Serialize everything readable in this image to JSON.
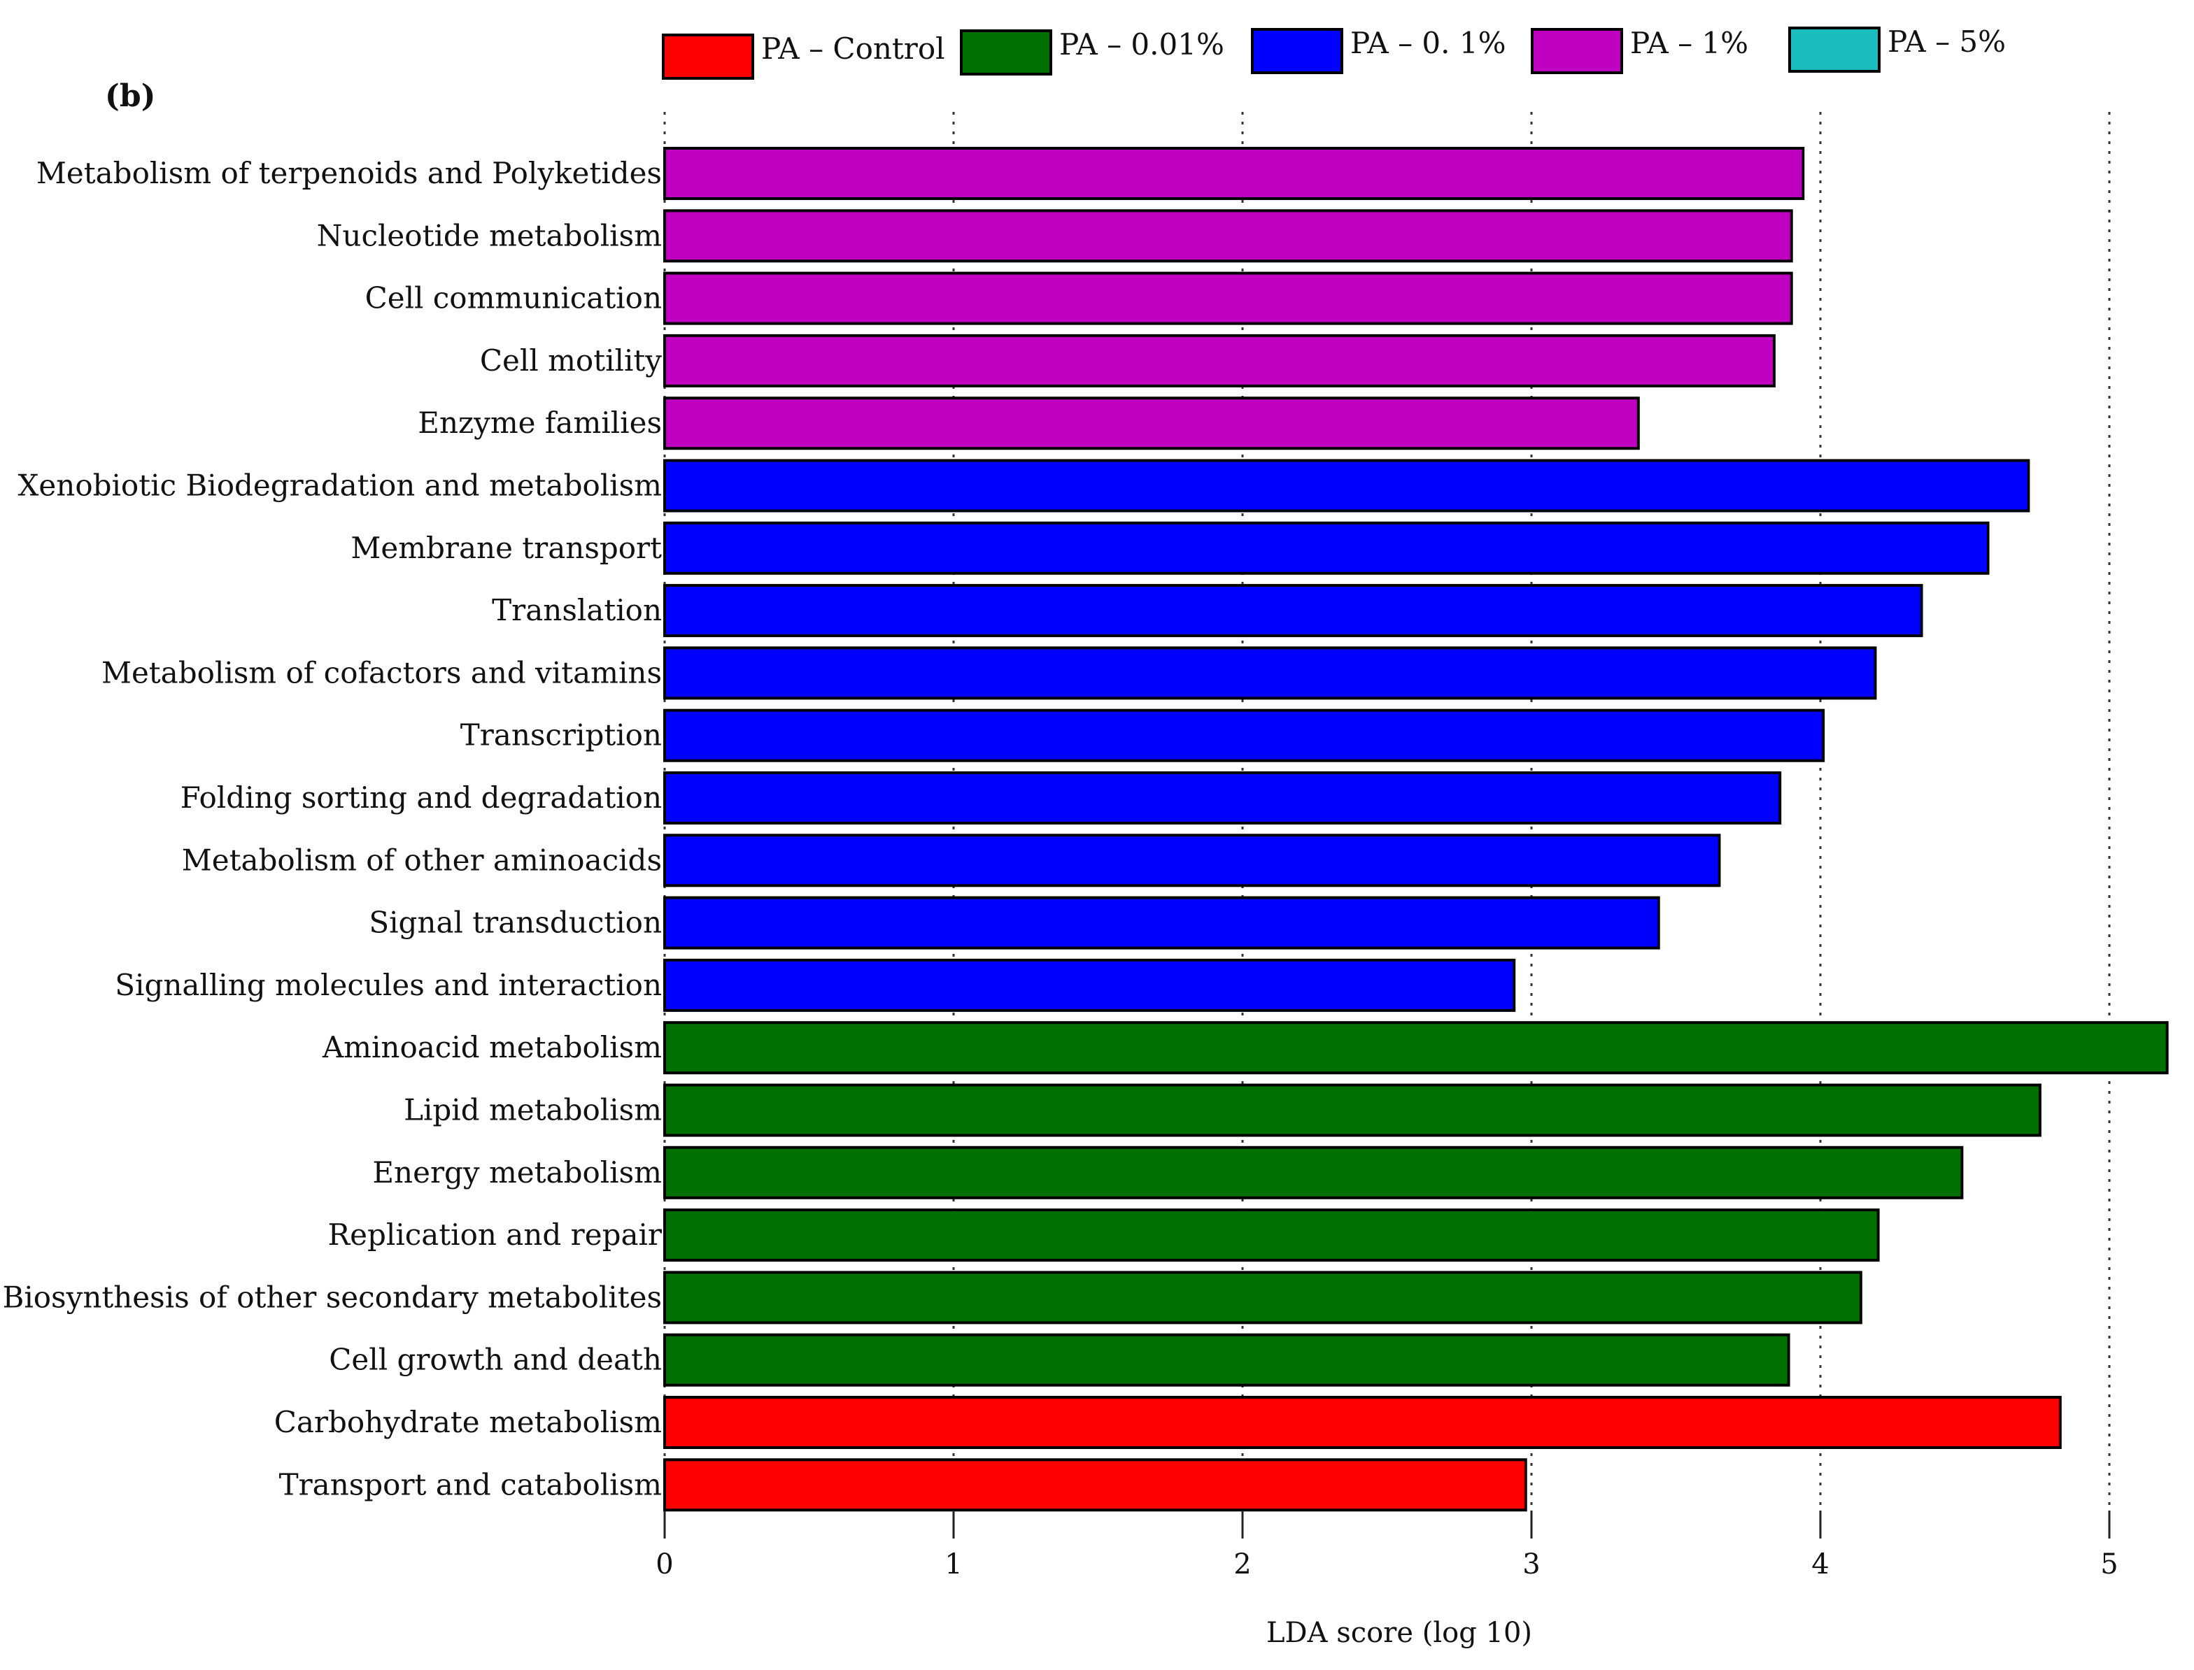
{
  "chart_data": {
    "type": "bar",
    "orientation": "horizontal",
    "panel_label": "(b)",
    "xlabel": "LDA score (log 10)",
    "xlim": [
      0,
      5.2
    ],
    "xticks": [
      0,
      1,
      2,
      3,
      4,
      5
    ],
    "grid": "vertical dotted",
    "legend_position": "top",
    "legend": [
      {
        "name": "PA – Control",
        "color": "#ff0000"
      },
      {
        "name": "PA – 0.01%",
        "color": "#007000"
      },
      {
        "name": "PA – 0. 1%",
        "color": "#0000ff"
      },
      {
        "name": "PA – 1%",
        "color": "#c000c0"
      },
      {
        "name": "PA – 5%",
        "color": "#1abcbc"
      }
    ],
    "bars": [
      {
        "label": "Metabolism of terpenoids and Polyketides",
        "value": 3.94,
        "group": 3
      },
      {
        "label": "Nucleotide metabolism",
        "value": 3.9,
        "group": 3
      },
      {
        "label": "Cell communication",
        "value": 3.9,
        "group": 3
      },
      {
        "label": "Cell motility",
        "value": 3.84,
        "group": 3
      },
      {
        "label": "Enzyme families",
        "value": 3.37,
        "group": 3
      },
      {
        "label": "Xenobiotic Biodegradation and metabolism",
        "value": 4.72,
        "group": 2
      },
      {
        "label": "Membrane transport",
        "value": 4.58,
        "group": 2
      },
      {
        "label": "Translation",
        "value": 4.35,
        "group": 2
      },
      {
        "label": "Metabolism of cofactors and vitamins",
        "value": 4.19,
        "group": 2
      },
      {
        "label": "Transcription",
        "value": 4.01,
        "group": 2
      },
      {
        "label": "Folding sorting and degradation",
        "value": 3.86,
        "group": 2
      },
      {
        "label": "Metabolism of other aminoacids",
        "value": 3.65,
        "group": 2
      },
      {
        "label": "Signal transduction",
        "value": 3.44,
        "group": 2
      },
      {
        "label": "Signalling molecules and interaction",
        "value": 2.94,
        "group": 2
      },
      {
        "label": "Aminoacid metabolism",
        "value": 5.2,
        "group": 1
      },
      {
        "label": "Lipid metabolism",
        "value": 4.76,
        "group": 1
      },
      {
        "label": "Energy metabolism",
        "value": 4.49,
        "group": 1
      },
      {
        "label": "Replication and repair",
        "value": 4.2,
        "group": 1
      },
      {
        "label": "Biosynthesis of other secondary metabolites",
        "value": 4.14,
        "group": 1
      },
      {
        "label": "Cell growth and death",
        "value": 3.89,
        "group": 1
      },
      {
        "label": "Carbohydrate metabolism",
        "value": 4.83,
        "group": 0
      },
      {
        "label": "Transport and catabolism",
        "value": 2.98,
        "group": 0
      }
    ]
  }
}
